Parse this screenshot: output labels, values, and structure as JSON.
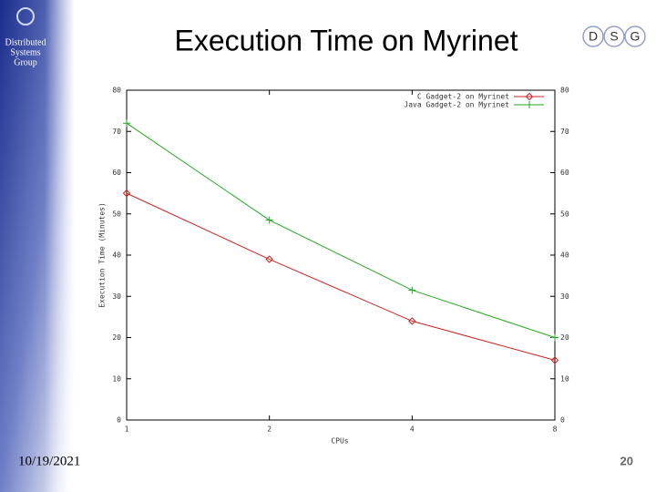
{
  "slide": {
    "sidebar_text": [
      "Distributed",
      "Systems",
      "Group"
    ],
    "logo": [
      "D",
      "S",
      "G"
    ],
    "date": "10/19/2021",
    "page_number": "20"
  },
  "chart_data": {
    "type": "line",
    "title": "Execution Time on Myrinet",
    "x_label": "CPUs",
    "y_label": "Execution Time (Minutes)",
    "categories": [
      "1",
      "2",
      "4",
      "8"
    ],
    "series": [
      {
        "name": "C Gadget-2 on Myrinet",
        "color": "#cc2222",
        "marker": "diamond",
        "values": [
          55,
          39,
          24,
          14.5
        ]
      },
      {
        "name": "Java Gadget-2 on Myrinet",
        "color": "#22aa22",
        "marker": "plus",
        "values": [
          72,
          48.5,
          31.5,
          20
        ]
      }
    ],
    "ylim": [
      0,
      80
    ],
    "yticks": [
      0,
      10,
      20,
      30,
      40,
      50,
      60,
      70,
      80
    ],
    "grid": false,
    "legend": "top-right"
  }
}
